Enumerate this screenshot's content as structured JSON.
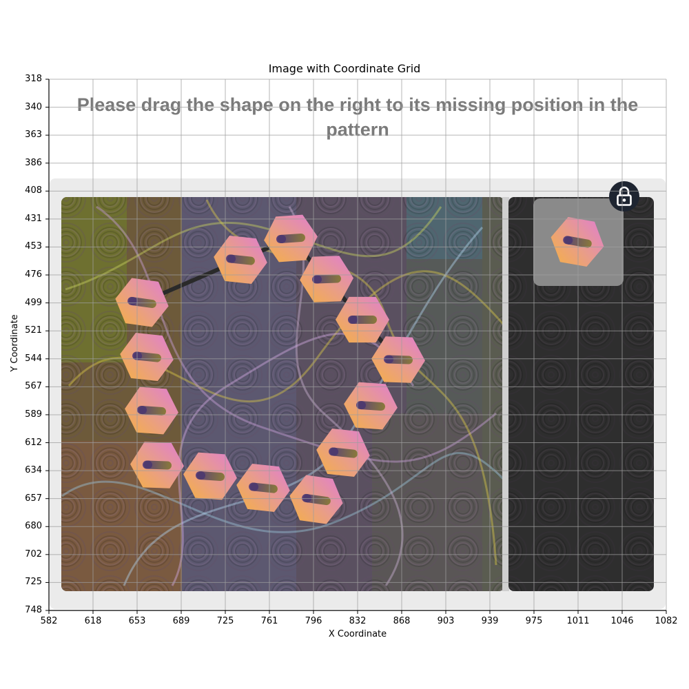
{
  "plot": {
    "title": "Image with Coordinate Grid",
    "x_axis_label": "X Coordinate",
    "y_axis_label": "Y Coordinate",
    "x_ticks": [
      "582",
      "618",
      "653",
      "689",
      "725",
      "761",
      "796",
      "832",
      "868",
      "903",
      "939",
      "975",
      "1011",
      "1046",
      "1082"
    ],
    "y_ticks": [
      "318",
      "340",
      "363",
      "386",
      "408",
      "431",
      "453",
      "476",
      "499",
      "521",
      "544",
      "567",
      "589",
      "612",
      "634",
      "657",
      "680",
      "702",
      "725",
      "748"
    ]
  },
  "captcha": {
    "instruction": "Please drag the shape on the right to its missing position in the pattern",
    "instruction_line_1": "Please drag the shape on the right to its missing position in the",
    "instruction_line_2": "pattern",
    "lock_icon": "lock-icon",
    "shape_icon": "hexagon-slot-icon",
    "colors": {
      "card_background": "#ebebeb",
      "instruction_text": "#7a7a7a",
      "hexagon_pink": "#e084c8",
      "hexagon_orange": "#f2aa4c",
      "right_panel": "#2e2e2e",
      "lock_badge": "#1e2531"
    }
  }
}
